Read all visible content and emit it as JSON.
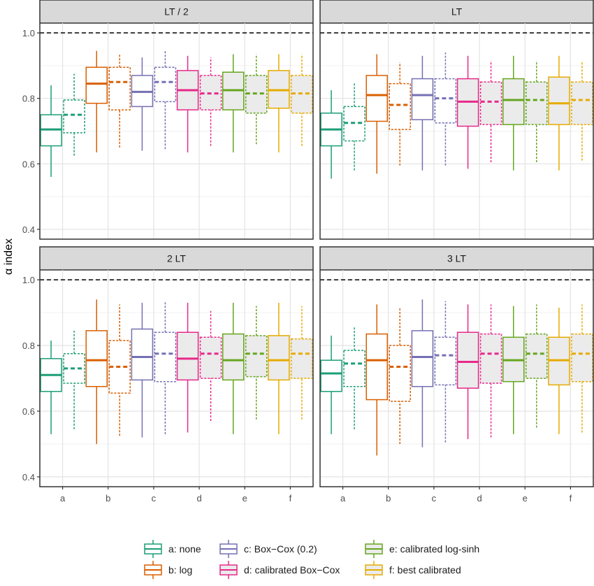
{
  "chart_data": {
    "type": "box",
    "ylabel": "α index",
    "ylim": [
      0.37,
      1.03
    ],
    "y_ticks": [
      0.4,
      0.6,
      0.8,
      1.0
    ],
    "y_tick_labels": [
      "0.4",
      "0.6",
      "0.8",
      "1.0"
    ],
    "reference_line": 1.0,
    "grid": true,
    "legend_position": "bottom",
    "categories": [
      "a",
      "b",
      "c",
      "d",
      "e",
      "f"
    ],
    "series_styles": [
      {
        "key": "a",
        "name": "a: none",
        "color": "#1b9e77"
      },
      {
        "key": "b",
        "name": "b: log",
        "color": "#d95f02"
      },
      {
        "key": "c",
        "name": "c: Box−Cox (0.2)",
        "color": "#7570b3"
      },
      {
        "key": "d",
        "name": "d: calibrated Box−Cox",
        "color": "#e7298a"
      },
      {
        "key": "e",
        "name": "e: calibrated log-sinh",
        "color": "#66a61e"
      },
      {
        "key": "f",
        "name": "f: best calibrated",
        "color": "#e6ab02"
      }
    ],
    "panels": [
      {
        "title": "LT / 2",
        "boxes": [
          {
            "cat": "a",
            "solid": [
              0.56,
              0.655,
              0.705,
              0.75,
              0.84
            ],
            "dashed": [
              0.625,
              0.695,
              0.75,
              0.795,
              0.875
            ]
          },
          {
            "cat": "b",
            "solid": [
              0.635,
              0.785,
              0.845,
              0.895,
              0.945
            ],
            "dashed": [
              0.65,
              0.765,
              0.85,
              0.895,
              0.935
            ]
          },
          {
            "cat": "c",
            "solid": [
              0.64,
              0.775,
              0.82,
              0.87,
              0.925
            ],
            "dashed": [
              0.645,
              0.79,
              0.85,
              0.895,
              0.945
            ]
          },
          {
            "cat": "d",
            "solid": [
              0.635,
              0.765,
              0.825,
              0.885,
              0.93
            ],
            "dashed": [
              0.655,
              0.765,
              0.815,
              0.87,
              0.925
            ]
          },
          {
            "cat": "e",
            "solid": [
              0.635,
              0.765,
              0.825,
              0.88,
              0.935
            ],
            "dashed": [
              0.66,
              0.755,
              0.815,
              0.87,
              0.935
            ]
          },
          {
            "cat": "f",
            "solid": [
              0.635,
              0.77,
              0.825,
              0.885,
              0.935
            ],
            "dashed": [
              0.655,
              0.755,
              0.815,
              0.87,
              0.935
            ]
          }
        ]
      },
      {
        "title": "LT",
        "boxes": [
          {
            "cat": "a",
            "solid": [
              0.555,
              0.655,
              0.705,
              0.755,
              0.825
            ],
            "dashed": [
              0.58,
              0.67,
              0.725,
              0.775,
              0.85
            ]
          },
          {
            "cat": "b",
            "solid": [
              0.57,
              0.73,
              0.81,
              0.87,
              0.935
            ],
            "dashed": [
              0.595,
              0.705,
              0.78,
              0.845,
              0.91
            ]
          },
          {
            "cat": "c",
            "solid": [
              0.58,
              0.735,
              0.81,
              0.86,
              0.93
            ],
            "dashed": [
              0.595,
              0.725,
              0.8,
              0.86,
              0.94
            ]
          },
          {
            "cat": "d",
            "solid": [
              0.585,
              0.715,
              0.79,
              0.86,
              0.93
            ],
            "dashed": [
              0.605,
              0.72,
              0.79,
              0.85,
              0.915
            ]
          },
          {
            "cat": "e",
            "solid": [
              0.58,
              0.72,
              0.795,
              0.86,
              0.93
            ],
            "dashed": [
              0.605,
              0.72,
              0.795,
              0.85,
              0.915
            ]
          },
          {
            "cat": "f",
            "solid": [
              0.58,
              0.72,
              0.785,
              0.865,
              0.93
            ],
            "dashed": [
              0.61,
              0.72,
              0.795,
              0.85,
              0.915
            ]
          }
        ]
      },
      {
        "title": "2 LT",
        "boxes": [
          {
            "cat": "a",
            "solid": [
              0.53,
              0.66,
              0.71,
              0.76,
              0.815
            ],
            "dashed": [
              0.545,
              0.685,
              0.73,
              0.775,
              0.845
            ]
          },
          {
            "cat": "b",
            "solid": [
              0.5,
              0.675,
              0.755,
              0.845,
              0.94
            ],
            "dashed": [
              0.525,
              0.655,
              0.735,
              0.815,
              0.925
            ]
          },
          {
            "cat": "c",
            "solid": [
              0.52,
              0.695,
              0.765,
              0.85,
              0.93
            ],
            "dashed": [
              0.53,
              0.69,
              0.775,
              0.84,
              0.935
            ]
          },
          {
            "cat": "d",
            "solid": [
              0.535,
              0.695,
              0.76,
              0.84,
              0.93
            ],
            "dashed": [
              0.57,
              0.7,
              0.775,
              0.825,
              0.905
            ]
          },
          {
            "cat": "e",
            "solid": [
              0.53,
              0.695,
              0.755,
              0.835,
              0.93
            ],
            "dashed": [
              0.575,
              0.705,
              0.775,
              0.83,
              0.92
            ]
          },
          {
            "cat": "f",
            "solid": [
              0.53,
              0.695,
              0.755,
              0.83,
              0.93
            ],
            "dashed": [
              0.575,
              0.7,
              0.775,
              0.82,
              0.92
            ]
          }
        ]
      },
      {
        "title": "3 LT",
        "boxes": [
          {
            "cat": "a",
            "solid": [
              0.53,
              0.66,
              0.715,
              0.755,
              0.83
            ],
            "dashed": [
              0.545,
              0.675,
              0.745,
              0.785,
              0.855
            ]
          },
          {
            "cat": "b",
            "solid": [
              0.465,
              0.635,
              0.755,
              0.835,
              0.925
            ],
            "dashed": [
              0.5,
              0.63,
              0.735,
              0.8,
              0.915
            ]
          },
          {
            "cat": "c",
            "solid": [
              0.49,
              0.675,
              0.765,
              0.845,
              0.94
            ],
            "dashed": [
              0.505,
              0.68,
              0.77,
              0.825,
              0.935
            ]
          },
          {
            "cat": "d",
            "solid": [
              0.515,
              0.67,
              0.75,
              0.84,
              0.925
            ],
            "dashed": [
              0.52,
              0.685,
              0.775,
              0.835,
              0.925
            ]
          },
          {
            "cat": "e",
            "solid": [
              0.53,
              0.69,
              0.755,
              0.825,
              0.92
            ],
            "dashed": [
              0.55,
              0.7,
              0.775,
              0.835,
              0.925
            ]
          },
          {
            "cat": "f",
            "solid": [
              0.53,
              0.68,
              0.755,
              0.825,
              0.915
            ],
            "dashed": [
              0.535,
              0.69,
              0.775,
              0.835,
              0.925
            ]
          }
        ]
      }
    ]
  }
}
